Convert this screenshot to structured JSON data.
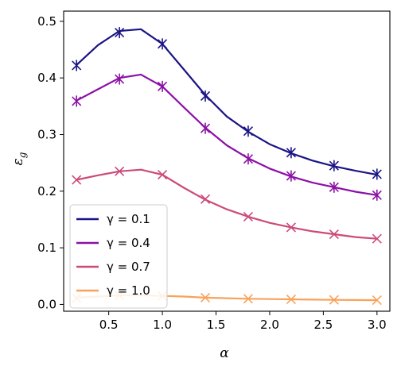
{
  "chart_data": {
    "type": "line",
    "xlabel": "α",
    "ylabel": "ε",
    "ylabel_sub": "g",
    "xlim": [
      0.08,
      3.12
    ],
    "ylim": [
      -0.012,
      0.518
    ],
    "xticks": [
      0.5,
      1.0,
      1.5,
      2.0,
      2.5,
      3.0
    ],
    "xtick_labels": [
      "0.5",
      "1.0",
      "1.5",
      "2.0",
      "2.5",
      "3.0"
    ],
    "yticks": [
      0.0,
      0.1,
      0.2,
      0.3,
      0.4,
      0.5
    ],
    "ytick_labels": [
      "0.0",
      "0.1",
      "0.2",
      "0.3",
      "0.4",
      "0.5"
    ],
    "grid": false,
    "legend_position": "lower-left",
    "series": [
      {
        "name": "γ = 0.1",
        "color": "#1a1486",
        "line_x": [
          0.2,
          0.4,
          0.6,
          0.8,
          1.0,
          1.2,
          1.4,
          1.6,
          1.8,
          2.0,
          2.2,
          2.4,
          2.6,
          2.8,
          3.0
        ],
        "line_y": [
          0.423,
          0.458,
          0.483,
          0.486,
          0.46,
          0.415,
          0.37,
          0.332,
          0.305,
          0.283,
          0.267,
          0.254,
          0.244,
          0.236,
          0.229
        ],
        "marker_x": [
          0.2,
          0.6,
          1.0,
          1.4,
          1.8,
          2.2,
          2.6,
          3.0
        ],
        "marker_y": [
          0.422,
          0.48,
          0.46,
          0.368,
          0.306,
          0.268,
          0.245,
          0.23
        ],
        "marker_style": "x-bar"
      },
      {
        "name": "γ = 0.4",
        "color": "#8b10a6",
        "line_x": [
          0.2,
          0.4,
          0.6,
          0.8,
          1.0,
          1.2,
          1.4,
          1.6,
          1.8,
          2.0,
          2.2,
          2.4,
          2.6,
          2.8,
          3.0
        ],
        "line_y": [
          0.36,
          0.38,
          0.4,
          0.406,
          0.385,
          0.348,
          0.312,
          0.281,
          0.258,
          0.24,
          0.226,
          0.215,
          0.207,
          0.199,
          0.193
        ],
        "marker_x": [
          0.2,
          0.6,
          1.0,
          1.4,
          1.8,
          2.2,
          2.6,
          3.0
        ],
        "marker_y": [
          0.359,
          0.398,
          0.385,
          0.311,
          0.257,
          0.227,
          0.207,
          0.193
        ],
        "marker_style": "x-bar"
      },
      {
        "name": "γ = 0.7",
        "color": "#cc4a7a",
        "line_x": [
          0.2,
          0.4,
          0.6,
          0.8,
          1.0,
          1.2,
          1.4,
          1.6,
          1.8,
          2.0,
          2.2,
          2.4,
          2.6,
          2.8,
          3.0
        ],
        "line_y": [
          0.22,
          0.228,
          0.235,
          0.238,
          0.229,
          0.206,
          0.185,
          0.168,
          0.155,
          0.144,
          0.136,
          0.129,
          0.124,
          0.119,
          0.116
        ],
        "marker_x": [
          0.2,
          0.6,
          1.0,
          1.4,
          1.8,
          2.2,
          2.6,
          3.0
        ],
        "marker_y": [
          0.22,
          0.235,
          0.229,
          0.186,
          0.155,
          0.136,
          0.124,
          0.116
        ],
        "marker_style": "x"
      },
      {
        "name": "γ = 1.0",
        "color": "#f9a25a",
        "line_x": [
          0.2,
          0.4,
          0.6,
          0.8,
          1.0,
          1.2,
          1.4,
          1.6,
          1.8,
          2.0,
          2.2,
          2.4,
          2.6,
          2.8,
          3.0
        ],
        "line_y": [
          0.012,
          0.014,
          0.016,
          0.016,
          0.015,
          0.014,
          0.012,
          0.011,
          0.01,
          0.0095,
          0.009,
          0.0085,
          0.008,
          0.0078,
          0.0075
        ],
        "marker_x": [
          0.2,
          0.6,
          1.0,
          1.4,
          1.8,
          2.2,
          2.6,
          3.0
        ],
        "marker_y": [
          0.011,
          0.016,
          0.015,
          0.012,
          0.01,
          0.009,
          0.008,
          0.0075
        ],
        "marker_style": "x"
      }
    ]
  }
}
